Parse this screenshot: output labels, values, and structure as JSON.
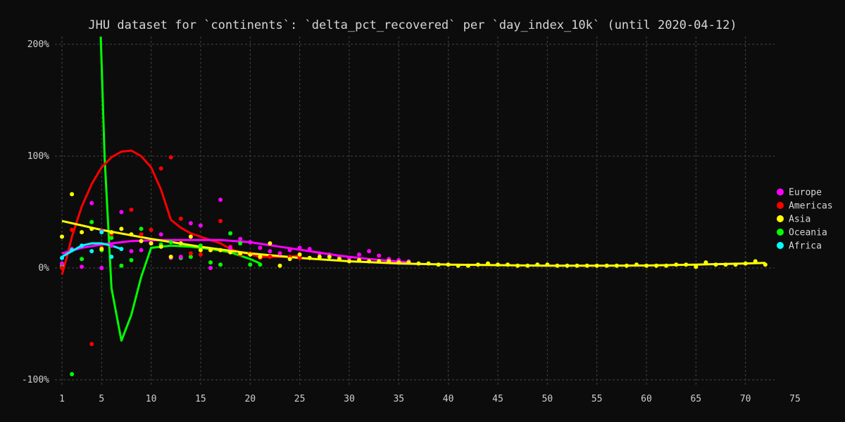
{
  "chart_data": {
    "type": "scatter",
    "title": "JHU dataset for `continents`: `delta_pct_recovered` per `day_index_10k` (until 2020-04-12)",
    "xlabel": "",
    "ylabel": "",
    "xlim": [
      0.3,
      75
    ],
    "ylim": [
      -105,
      210
    ],
    "x_ticks": [
      1,
      5,
      10,
      15,
      20,
      25,
      30,
      35,
      40,
      45,
      50,
      55,
      60,
      65,
      70,
      75
    ],
    "y_ticks": [
      {
        "value": 200,
        "label": "200%"
      },
      {
        "value": 100,
        "label": "100%"
      },
      {
        "value": 0,
        "label": "0%"
      },
      {
        "value": -100,
        "label": "-100%"
      }
    ],
    "grid": true,
    "legend_position": "right",
    "series": [
      {
        "name": "Europe",
        "color": "#ff00ff",
        "points": [
          [
            1,
            4
          ],
          [
            2,
            17
          ],
          [
            3,
            1
          ],
          [
            4,
            58
          ],
          [
            5,
            0
          ],
          [
            5,
            33
          ],
          [
            6,
            20
          ],
          [
            7,
            50
          ],
          [
            8,
            15
          ],
          [
            9,
            16
          ],
          [
            10,
            22
          ],
          [
            11,
            30
          ],
          [
            12,
            9
          ],
          [
            13,
            10
          ],
          [
            14,
            40
          ],
          [
            15,
            38
          ],
          [
            16,
            0
          ],
          [
            17,
            61
          ],
          [
            18,
            18
          ],
          [
            19,
            26
          ],
          [
            20,
            23
          ],
          [
            21,
            18
          ],
          [
            22,
            15
          ],
          [
            23,
            13
          ],
          [
            24,
            16
          ],
          [
            25,
            18
          ],
          [
            26,
            17
          ],
          [
            27,
            13
          ],
          [
            28,
            12
          ],
          [
            29,
            10
          ],
          [
            30,
            9
          ],
          [
            31,
            12
          ],
          [
            32,
            15
          ],
          [
            33,
            11
          ],
          [
            34,
            8
          ],
          [
            35,
            7
          ],
          [
            36,
            6
          ]
        ],
        "trend": [
          [
            1,
            13
          ],
          [
            3,
            18
          ],
          [
            5,
            21
          ],
          [
            8,
            24
          ],
          [
            11,
            25
          ],
          [
            14,
            25
          ],
          [
            17,
            25
          ],
          [
            20,
            23
          ],
          [
            23,
            19
          ],
          [
            26,
            15
          ],
          [
            29,
            11
          ],
          [
            32,
            8
          ],
          [
            36,
            5
          ]
        ]
      },
      {
        "name": "Americas",
        "color": "#ff0000",
        "points": [
          [
            1,
            0
          ],
          [
            2,
            34
          ],
          [
            4,
            -68
          ],
          [
            5,
            18
          ],
          [
            6,
            30
          ],
          [
            8,
            52
          ],
          [
            9,
            30
          ],
          [
            10,
            34
          ],
          [
            11,
            89
          ],
          [
            12,
            99
          ],
          [
            13,
            44
          ],
          [
            14,
            13
          ],
          [
            15,
            12
          ],
          [
            16,
            16
          ],
          [
            17,
            42
          ],
          [
            18,
            19
          ],
          [
            19,
            12
          ],
          [
            20,
            13
          ],
          [
            21,
            9
          ],
          [
            22,
            10
          ],
          [
            23,
            13
          ],
          [
            24,
            10
          ],
          [
            25,
            9
          ]
        ],
        "trend": [
          [
            1,
            -6
          ],
          [
            1.5,
            10
          ],
          [
            2,
            28
          ],
          [
            3,
            55
          ],
          [
            4,
            75
          ],
          [
            5,
            90
          ],
          [
            6,
            99
          ],
          [
            7,
            104
          ],
          [
            8,
            105
          ],
          [
            9,
            100
          ],
          [
            10,
            90
          ],
          [
            11,
            70
          ],
          [
            12,
            43
          ],
          [
            13,
            36
          ],
          [
            14,
            31
          ],
          [
            15,
            28
          ],
          [
            16,
            25
          ],
          [
            17,
            22
          ],
          [
            18,
            17
          ],
          [
            19,
            14
          ],
          [
            20,
            12
          ],
          [
            21,
            10
          ],
          [
            22,
            10
          ],
          [
            23,
            10
          ],
          [
            24,
            10
          ],
          [
            25,
            11
          ]
        ]
      },
      {
        "name": "Asia",
        "color": "#ffff00",
        "points": [
          [
            1,
            28
          ],
          [
            2,
            66
          ],
          [
            3,
            32
          ],
          [
            4,
            35
          ],
          [
            5,
            17
          ],
          [
            6,
            32
          ],
          [
            7,
            35
          ],
          [
            8,
            30
          ],
          [
            9,
            24
          ],
          [
            10,
            22
          ],
          [
            11,
            19
          ],
          [
            12,
            10
          ],
          [
            13,
            22
          ],
          [
            14,
            28
          ],
          [
            15,
            16
          ],
          [
            16,
            16
          ],
          [
            17,
            16
          ],
          [
            18,
            14
          ],
          [
            19,
            13
          ],
          [
            20,
            12
          ],
          [
            21,
            10
          ],
          [
            22,
            22
          ],
          [
            23,
            2
          ],
          [
            24,
            8
          ],
          [
            25,
            12
          ],
          [
            26,
            9
          ],
          [
            27,
            10
          ],
          [
            28,
            10
          ],
          [
            29,
            8
          ],
          [
            30,
            6
          ],
          [
            31,
            7
          ],
          [
            32,
            6
          ],
          [
            33,
            6
          ],
          [
            34,
            6
          ],
          [
            35,
            5
          ],
          [
            36,
            5
          ],
          [
            37,
            4
          ],
          [
            38,
            4
          ],
          [
            39,
            3
          ],
          [
            40,
            3
          ],
          [
            41,
            2
          ],
          [
            42,
            2
          ],
          [
            43,
            3
          ],
          [
            44,
            4
          ],
          [
            45,
            3
          ],
          [
            46,
            3
          ],
          [
            47,
            2
          ],
          [
            48,
            2
          ],
          [
            49,
            3
          ],
          [
            50,
            3
          ],
          [
            51,
            2
          ],
          [
            52,
            2
          ],
          [
            53,
            2
          ],
          [
            54,
            2
          ],
          [
            55,
            2
          ],
          [
            56,
            2
          ],
          [
            57,
            2
          ],
          [
            58,
            2
          ],
          [
            59,
            3
          ],
          [
            60,
            2
          ],
          [
            61,
            2
          ],
          [
            62,
            2
          ],
          [
            63,
            3
          ],
          [
            64,
            3
          ],
          [
            65,
            1
          ],
          [
            66,
            5
          ],
          [
            67,
            3
          ],
          [
            68,
            3
          ],
          [
            69,
            3
          ],
          [
            70,
            4
          ],
          [
            71,
            6
          ],
          [
            72,
            3
          ]
        ],
        "trend": [
          [
            1,
            42
          ],
          [
            5,
            34
          ],
          [
            10,
            26
          ],
          [
            15,
            19
          ],
          [
            20,
            13
          ],
          [
            25,
            9
          ],
          [
            30,
            6
          ],
          [
            35,
            4
          ],
          [
            40,
            3
          ],
          [
            45,
            2.5
          ],
          [
            50,
            2
          ],
          [
            55,
            2
          ],
          [
            60,
            2.2
          ],
          [
            65,
            3
          ],
          [
            70,
            4
          ],
          [
            72,
            4.5
          ]
        ]
      },
      {
        "name": "Oceania",
        "color": "#00ff00",
        "points": [
          [
            1,
            2
          ],
          [
            2,
            -95
          ],
          [
            3,
            8
          ],
          [
            4,
            41
          ],
          [
            5,
            16
          ],
          [
            6,
            27
          ],
          [
            7,
            2
          ],
          [
            8,
            7
          ],
          [
            9,
            35
          ],
          [
            10,
            22
          ],
          [
            11,
            21
          ],
          [
            12,
            23
          ],
          [
            13,
            9
          ],
          [
            14,
            10
          ],
          [
            15,
            20
          ],
          [
            16,
            5
          ],
          [
            17,
            3
          ],
          [
            18,
            31
          ],
          [
            19,
            22
          ],
          [
            20,
            3
          ],
          [
            21,
            3
          ]
        ],
        "trend": [
          [
            4.9,
            210
          ],
          [
            5.3,
            100
          ],
          [
            6,
            -18
          ],
          [
            7,
            -65
          ],
          [
            8,
            -42
          ],
          [
            9,
            -8
          ],
          [
            10,
            18
          ],
          [
            12,
            20
          ],
          [
            14,
            19
          ],
          [
            16,
            17
          ],
          [
            18,
            14
          ],
          [
            20,
            8
          ],
          [
            21,
            4
          ]
        ]
      },
      {
        "name": "Africa",
        "color": "#00ffff",
        "points": [
          [
            1,
            9
          ],
          [
            2,
            16
          ],
          [
            3,
            20
          ],
          [
            4,
            15
          ],
          [
            5,
            32
          ],
          [
            6,
            10
          ],
          [
            7,
            17
          ]
        ],
        "trend": [
          [
            1,
            10
          ],
          [
            2,
            15
          ],
          [
            3,
            20
          ],
          [
            4,
            22
          ],
          [
            5,
            22
          ],
          [
            6,
            20
          ],
          [
            7,
            17
          ]
        ]
      }
    ]
  }
}
